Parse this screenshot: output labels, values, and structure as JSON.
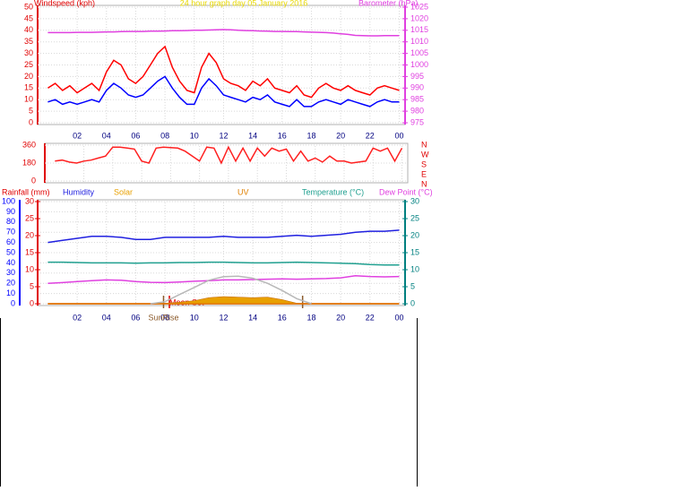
{
  "chart_data": [
    {
      "type": "line",
      "title": "24 hour graph day  05 January 2016",
      "ylabel": "Windspeed (kph)",
      "y2label": "Barometer (hPa)",
      "title_color": "#e8d800",
      "ycolor": "#e00000",
      "y2color": "#e040e0",
      "grid": true,
      "xlim": [
        -0.7,
        24.4
      ],
      "xticks": [
        {
          "value": 2,
          "label": "02"
        },
        {
          "value": 4,
          "label": "04"
        },
        {
          "value": 6,
          "label": "06"
        },
        {
          "value": 8,
          "label": "08"
        },
        10,
        12,
        14,
        16,
        18,
        20,
        22,
        {
          "value": 24,
          "label": "00"
        }
      ],
      "ylim": [
        0,
        50
      ],
      "yticks": [
        0,
        5,
        10,
        15,
        20,
        25,
        30,
        35,
        40,
        45,
        50
      ],
      "y2lim": [
        975,
        1025
      ],
      "y2ticks": [
        975,
        980,
        985,
        990,
        995,
        1000,
        1005,
        1010,
        1015,
        1020,
        1025
      ],
      "x": [
        0,
        0.5,
        1,
        1.5,
        2,
        2.5,
        3,
        3.5,
        4,
        4.5,
        5,
        5.5,
        6,
        6.5,
        7,
        7.5,
        8,
        8.5,
        9,
        9.5,
        10,
        10.5,
        11,
        11.5,
        12,
        12.5,
        13,
        13.5,
        14,
        14.5,
        15,
        15.5,
        16,
        16.5,
        17,
        17.5,
        18,
        18.5,
        19,
        19.5,
        20,
        20.5,
        21,
        21.5,
        22,
        22.5,
        23,
        23.5,
        24
      ],
      "series": [
        {
          "color": "#ff0000",
          "values": [
            15,
            17,
            14,
            16,
            13,
            15,
            17,
            14,
            22,
            27,
            25,
            19,
            17,
            20,
            25,
            30,
            33,
            24,
            18,
            14,
            13,
            24,
            30,
            26,
            19,
            17,
            16,
            14,
            18,
            16,
            19,
            15,
            14,
            13,
            16,
            12,
            11,
            15,
            17,
            15,
            14,
            16,
            14,
            13,
            12,
            15,
            16,
            15,
            14
          ]
        },
        {
          "color": "#0000ff",
          "values": [
            9,
            10,
            8,
            9,
            8,
            9,
            10,
            9,
            14,
            17,
            15,
            12,
            11,
            12,
            15,
            18,
            20,
            15,
            11,
            8,
            8,
            15,
            19,
            16,
            12,
            11,
            10,
            9,
            11,
            10,
            12,
            9,
            8,
            7,
            10,
            7,
            7,
            9,
            10,
            9,
            8,
            10,
            9,
            8,
            7,
            9,
            10,
            9,
            9
          ]
        },
        {
          "color": "#e040e0",
          "axis": "y2",
          "values": [
            1014,
            1014,
            1014,
            1014,
            1014.1,
            1014.1,
            1014.1,
            1014.2,
            1014.3,
            1014.3,
            1014.4,
            1014.5,
            1014.5,
            1014.5,
            1014.6,
            1014.6,
            1014.7,
            1014.8,
            1014.8,
            1014.9,
            1015,
            1015,
            1015.1,
            1015.2,
            1015.3,
            1015.2,
            1015,
            1014.9,
            1014.8,
            1014.7,
            1014.6,
            1014.5,
            1014.5,
            1014.4,
            1014.4,
            1014.3,
            1014.2,
            1014.1,
            1014,
            1013.8,
            1013.5,
            1013.2,
            1012.8,
            1012.7,
            1012.6,
            1012.6,
            1012.7,
            1012.7,
            1012.7
          ]
        }
      ]
    },
    {
      "type": "line",
      "ycolor": "#e00000",
      "grid": true,
      "direction_labels": [
        "N",
        "W",
        "S",
        "E",
        "N"
      ],
      "xlim": [
        -0.7,
        24.4
      ],
      "xticks": [
        {
          "value": 2,
          "label": "02"
        },
        {
          "value": 4,
          "label": "04"
        },
        {
          "value": 6,
          "label": "06"
        },
        {
          "value": 8,
          "label": "08"
        },
        10,
        12,
        14,
        16,
        18,
        20,
        22,
        {
          "value": 24,
          "label": "00"
        }
      ],
      "ylim": [
        0,
        360
      ],
      "yticks": [
        0,
        180,
        360
      ],
      "x": [
        0,
        0.5,
        1,
        1.5,
        2,
        2.5,
        3,
        3.5,
        4,
        4.5,
        5,
        5.5,
        6,
        6.5,
        7,
        7.5,
        8,
        8.5,
        9,
        9.5,
        10,
        10.5,
        11,
        11.5,
        12,
        12.5,
        13,
        13.5,
        14,
        14.5,
        15,
        15.5,
        16,
        16.5,
        17,
        17.5,
        18,
        18.5,
        19,
        19.5,
        20,
        20.5,
        21,
        21.5,
        22,
        22.5,
        23,
        23.5,
        24
      ],
      "series": [
        {
          "color": "#ff2020",
          "values": [
            200,
            210,
            190,
            180,
            200,
            210,
            230,
            250,
            340,
            340,
            330,
            320,
            200,
            180,
            330,
            340,
            335,
            330,
            300,
            250,
            200,
            340,
            330,
            180,
            340,
            200,
            330,
            200,
            330,
            250,
            330,
            300,
            320,
            200,
            300,
            200,
            230,
            190,
            250,
            200,
            200,
            180,
            190,
            200,
            330,
            300,
            330,
            200,
            330
          ]
        }
      ]
    },
    {
      "type": "line",
      "grid": true,
      "xlim": [
        -0.7,
        24.4
      ],
      "xticks": [
        {
          "value": 2,
          "label": "02"
        },
        {
          "value": 4,
          "label": "04"
        },
        {
          "value": 6,
          "label": "06"
        },
        {
          "value": 8,
          "label": "08"
        },
        10,
        12,
        14,
        16,
        18,
        20,
        22,
        {
          "value": 24,
          "label": "00"
        }
      ],
      "ylim": [
        0,
        100
      ],
      "yticks": [
        0,
        10,
        20,
        30,
        40,
        50,
        60,
        70,
        80,
        90,
        100
      ],
      "ycolor": "#0000ff",
      "y2lim": [
        0,
        30
      ],
      "y2ticks": [
        0,
        5,
        10,
        15,
        20,
        25,
        30
      ],
      "y2color": "#008080",
      "y3lim": [
        0,
        30
      ],
      "y3ticks": [
        0,
        5,
        10,
        15,
        20,
        25,
        30
      ],
      "y3color": "#e00000",
      "y4lim": [
        0,
        1000
      ],
      "x": [
        0,
        1,
        2,
        3,
        4,
        5,
        6,
        7,
        8,
        9,
        10,
        11,
        12,
        13,
        14,
        15,
        16,
        17,
        18,
        19,
        20,
        21,
        22,
        23,
        24
      ],
      "series": [
        {
          "name": "Rainfall (mm)",
          "color": "#e00000",
          "axis": "y3",
          "values": [
            0,
            0,
            0,
            0,
            0,
            0,
            0,
            0,
            0,
            0,
            0,
            0,
            0,
            0,
            0,
            0,
            0,
            0,
            0,
            0,
            0,
            0,
            0,
            0,
            0
          ]
        },
        {
          "name": "Humidity",
          "color": "#2020e0",
          "values": [
            60,
            62,
            64,
            66,
            66,
            65,
            63,
            63,
            65,
            65,
            65,
            65,
            66,
            65,
            65,
            65,
            66,
            67,
            66,
            67,
            68,
            70,
            71,
            71,
            72
          ]
        },
        {
          "name": "Solar",
          "color": "#e8a000",
          "style": "area",
          "axis": "y4",
          "values": [
            0,
            0,
            0,
            0,
            0,
            0,
            0,
            0,
            5,
            15,
            30,
            60,
            70,
            65,
            60,
            65,
            40,
            5,
            0,
            0,
            0,
            0,
            0,
            0,
            0
          ]
        },
        {
          "name": "UV",
          "color": "#e08000",
          "axis": "y3",
          "values": [
            0,
            0,
            0,
            0,
            0,
            0,
            0,
            0,
            0,
            0,
            0,
            0,
            0,
            0,
            0,
            0,
            0,
            0,
            0,
            0,
            0,
            0,
            0,
            0,
            0
          ]
        },
        {
          "name": "Temperature (°C)",
          "color": "#20a090",
          "axis": "y2",
          "values": [
            12.2,
            12.2,
            12.1,
            12,
            12,
            12,
            11.9,
            12,
            12,
            12.1,
            12.1,
            12.2,
            12.2,
            12.1,
            12,
            12,
            12.1,
            12.2,
            12.1,
            12,
            11.9,
            11.8,
            11.5,
            11.4,
            11.4
          ]
        },
        {
          "name": "Dew Point (°C)",
          "color": "#e040e0",
          "axis": "y2",
          "values": [
            6,
            6.2,
            6.5,
            6.8,
            7,
            6.9,
            6.5,
            6.3,
            6.2,
            6.4,
            6.6,
            6.8,
            7,
            7,
            7.1,
            7.2,
            7.3,
            7.2,
            7.3,
            7.4,
            7.6,
            8.2,
            8,
            7.9,
            8
          ]
        },
        {
          "color": "#b8b8b8",
          "axis": "y4",
          "values": [
            null,
            null,
            null,
            null,
            null,
            null,
            null,
            0,
            20,
            90,
            160,
            230,
            265,
            270,
            250,
            200,
            130,
            50,
            0,
            null,
            null,
            null,
            null,
            null,
            null
          ]
        }
      ],
      "events": [
        {
          "label": "SunRise",
          "x": 7.9,
          "color": "#8b5a2b"
        },
        {
          "label": "Moon Set",
          "x": 8.3,
          "color": "#e00000"
        },
        {
          "x": 17.4,
          "color": "#8b5a2b"
        }
      ]
    }
  ]
}
